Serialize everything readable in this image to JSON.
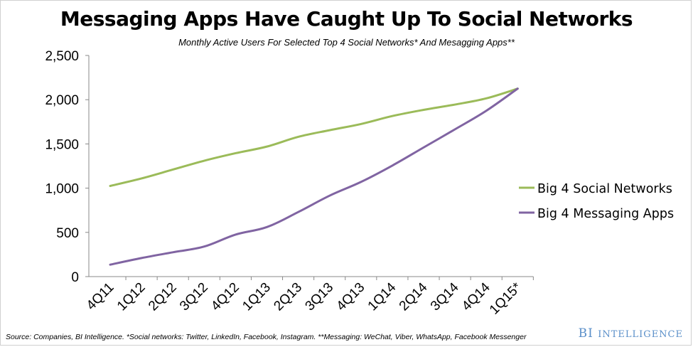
{
  "chart_data": {
    "type": "line",
    "title": "Messaging Apps Have Caught Up To Social Networks",
    "subtitle": "Monthly Active Users For Selected Top 4 Social Networks* And Mesagging Apps**",
    "xlabel": "",
    "ylabel": "",
    "categories": [
      "4Q11",
      "1Q12",
      "2Q12",
      "3Q12",
      "4Q12",
      "1Q13",
      "2Q13",
      "3Q13",
      "4Q13",
      "1Q14",
      "2Q14",
      "3Q14",
      "4Q14",
      "1Q15*"
    ],
    "y_ticks": [
      "0",
      "500",
      "1,000",
      "1,500",
      "2,000",
      "2,500"
    ],
    "y_tick_values": [
      0,
      500,
      1000,
      1500,
      2000,
      2500
    ],
    "ylim": [
      0,
      2500
    ],
    "grid": false,
    "legend_position": "right",
    "series": [
      {
        "name": "Big 4 Social Networks",
        "color": "#9bbb59",
        "values": [
          1025,
          1110,
          1210,
          1310,
          1395,
          1470,
          1580,
          1655,
          1725,
          1815,
          1885,
          1945,
          2015,
          2125
        ]
      },
      {
        "name": "Big 4 Messaging Apps",
        "color": "#8064a2",
        "values": [
          135,
          210,
          275,
          340,
          475,
          560,
          730,
          915,
          1070,
          1255,
          1460,
          1665,
          1875,
          2125
        ]
      }
    ]
  },
  "footer": {
    "source": "Source: Companies, BI Intelligence. *Social networks: Twitter, LinkedIn, Facebook, Instagram. **Messaging: WeChat, Viber, WhatsApp, Facebook Messenger",
    "brand_prefix": "BI",
    "brand_name": "Intelligence"
  }
}
